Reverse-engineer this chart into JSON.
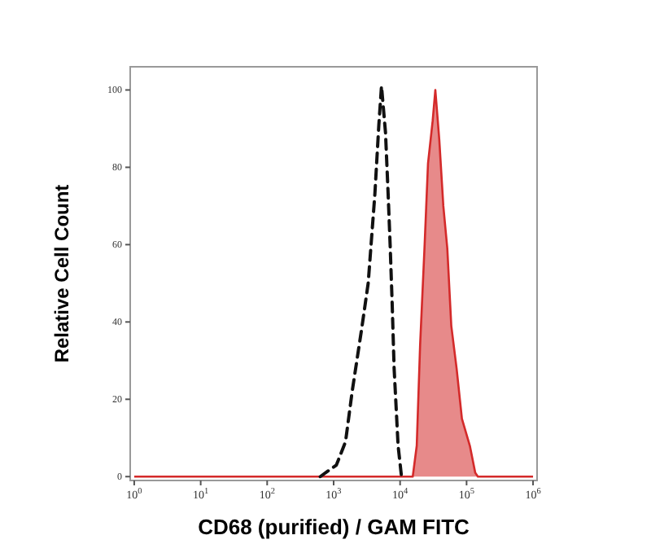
{
  "chart_data": {
    "type": "line",
    "xlabel": "CD68 (purified) / GAM FITC",
    "ylabel": "Relative Cell Count",
    "log": "x",
    "grid": false,
    "marker": "none",
    "xlim": [
      0.87,
      1150000
    ],
    "ylim": [
      -1,
      106
    ],
    "xticks": [
      {
        "value": 1,
        "label": "10$^{0}$"
      },
      {
        "value": 10,
        "label": "10$^{1}$"
      },
      {
        "value": 100,
        "label": "10$^{2}$"
      },
      {
        "value": 1000,
        "label": "10$^{3}$"
      },
      {
        "value": 10000,
        "label": "10$^{4}$"
      },
      {
        "value": 100000,
        "label": "10$^{5}$"
      },
      {
        "value": 1000000,
        "label": "10$^{6}$"
      }
    ],
    "yticks": [
      0,
      20,
      40,
      60,
      80,
      100
    ],
    "series": [
      {
        "type": "area",
        "color": "#d42a2a",
        "line_style": "solid",
        "x": [
          1,
          15500,
          17800,
          20000,
          23400,
          26300,
          30900,
          33900,
          38900,
          44700,
          51300,
          58900,
          70800,
          85100,
          112000,
          135000,
          148000,
          1000000
        ],
        "values": [
          0,
          0,
          8,
          34,
          60,
          81,
          92,
          100,
          87,
          70,
          59,
          39,
          28,
          15,
          8,
          1,
          0,
          0
        ]
      },
      {
        "color": "#111111",
        "line_style": "dashed",
        "x": [
          630,
          1100,
          1510,
          1900,
          2630,
          3310,
          4170,
          4790,
          5250,
          6030,
          6610,
          7080,
          7590,
          8130,
          9330,
          10500
        ],
        "values": [
          0,
          3,
          9,
          22,
          38,
          50,
          73,
          91,
          101,
          89,
          73,
          60,
          45,
          28,
          8,
          0
        ]
      }
    ]
  }
}
